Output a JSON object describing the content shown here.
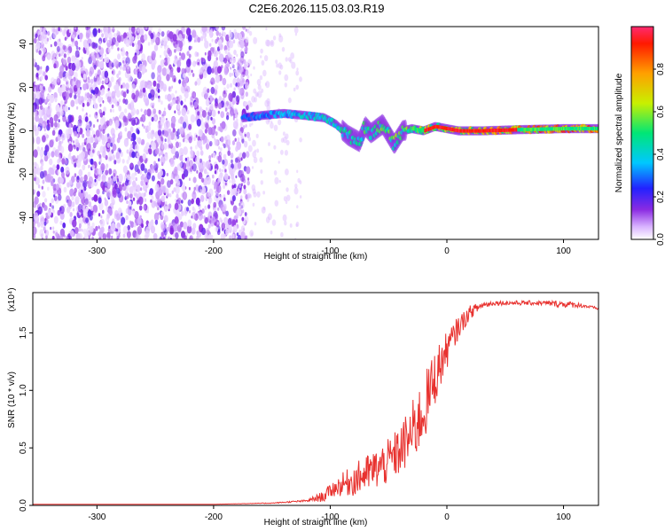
{
  "title": "C2E6.2026.115.03.03.R19",
  "chart_data": [
    {
      "type": "heatmap",
      "title": "C2E6.2026.115.03.03.R19",
      "xlabel": "Height of straight line (km)",
      "ylabel": "Frequency (Hz)",
      "xlim": [
        -355,
        130
      ],
      "ylim": [
        -50,
        48
      ],
      "x_ticks": [
        -300,
        -200,
        -100,
        0,
        100
      ],
      "y_ticks": [
        -40,
        -20,
        0,
        20,
        40
      ],
      "colorbar": {
        "label": "Normalized spectral amplitude",
        "range": [
          0,
          1
        ],
        "ticks": [
          "0.0",
          "0.2",
          "0.4",
          "0.6",
          "0.8"
        ],
        "tick_values": [
          0.0,
          0.2,
          0.4,
          0.6,
          0.8
        ],
        "colormap": "rainbow"
      },
      "ridge": {
        "x": [
          -175,
          -160,
          -140,
          -120,
          -105,
          -95,
          -85,
          -75,
          -70,
          -65,
          -55,
          -45,
          -38,
          -30,
          -20,
          -10,
          0,
          10,
          30,
          60,
          100,
          130
        ],
        "y": [
          6,
          7,
          8,
          7,
          6,
          3,
          -2,
          -5,
          2,
          -1,
          3,
          -6,
          0,
          1,
          0,
          2,
          1,
          0,
          0,
          0.5,
          1,
          1
        ]
      },
      "ridge_amplitude_range": [
        0.15,
        0.95
      ],
      "noise_region": [
        -355,
        -170
      ]
    },
    {
      "type": "line",
      "xlabel": "Height of straight line (km)",
      "ylabel": "SNR (10 * v/v)",
      "y_scale_label": "(x10⁴)",
      "xlim": [
        -355,
        130
      ],
      "ylim": [
        0,
        1.85
      ],
      "x_ticks": [
        -300,
        -200,
        -100,
        0,
        100
      ],
      "y_ticks": [
        "0.0",
        "0.5",
        "1.0",
        "1.5"
      ],
      "y_tick_values": [
        0.0,
        0.5,
        1.0,
        1.5
      ],
      "series": [
        {
          "color": "#e8322f",
          "x": [
            -355,
            -300,
            -250,
            -200,
            -150,
            -120,
            -105,
            -100,
            -90,
            -80,
            -70,
            -60,
            -50,
            -40,
            -30,
            -20,
            -10,
            0,
            10,
            20,
            30,
            40,
            60,
            80,
            100,
            115,
            130
          ],
          "y": [
            0.01,
            0.01,
            0.01,
            0.01,
            0.02,
            0.04,
            0.08,
            0.13,
            0.18,
            0.22,
            0.27,
            0.32,
            0.38,
            0.48,
            0.62,
            0.82,
            1.12,
            1.35,
            1.55,
            1.68,
            1.74,
            1.76,
            1.76,
            1.76,
            1.75,
            1.74,
            1.71
          ],
          "noise": [
            0,
            0,
            0,
            0,
            0.003,
            0.01,
            0.05,
            0.06,
            0.1,
            0.14,
            0.16,
            0.18,
            0.2,
            0.22,
            0.28,
            0.3,
            0.25,
            0.16,
            0.1,
            0.06,
            0.03,
            0.02,
            0.02,
            0.02,
            0.03,
            0.02,
            0.01
          ]
        }
      ]
    }
  ]
}
